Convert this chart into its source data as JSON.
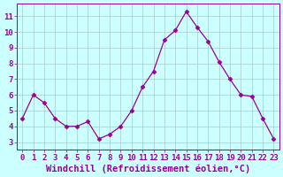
{
  "x": [
    0,
    1,
    2,
    3,
    4,
    5,
    6,
    7,
    8,
    9,
    10,
    11,
    12,
    13,
    14,
    15,
    16,
    17,
    18,
    19,
    20,
    21,
    22,
    23
  ],
  "y": [
    4.5,
    6.0,
    5.5,
    4.5,
    4.0,
    4.0,
    4.3,
    3.2,
    3.5,
    4.0,
    5.0,
    6.5,
    7.5,
    9.5,
    10.1,
    11.3,
    10.3,
    9.4,
    8.1,
    7.0,
    6.0,
    5.9,
    4.5,
    3.2
  ],
  "line_color": "#990099",
  "marker": "D",
  "marker_size": 2.5,
  "bg_color": "#ccffff",
  "grid_color": "#aacccc",
  "xlabel": "Windchill (Refroidissement éolien,°C)",
  "xlim": [
    -0.5,
    23.5
  ],
  "ylim": [
    2.5,
    11.8
  ],
  "yticks": [
    3,
    4,
    5,
    6,
    7,
    8,
    9,
    10,
    11
  ],
  "xticks": [
    0,
    1,
    2,
    3,
    4,
    5,
    6,
    7,
    8,
    9,
    10,
    11,
    12,
    13,
    14,
    15,
    16,
    17,
    18,
    19,
    20,
    21,
    22,
    23
  ],
  "tick_color": "#990099",
  "label_color": "#990099",
  "axis_line_color": "#990099",
  "font_size_xlabel": 7.5,
  "font_size_tick": 6.5
}
